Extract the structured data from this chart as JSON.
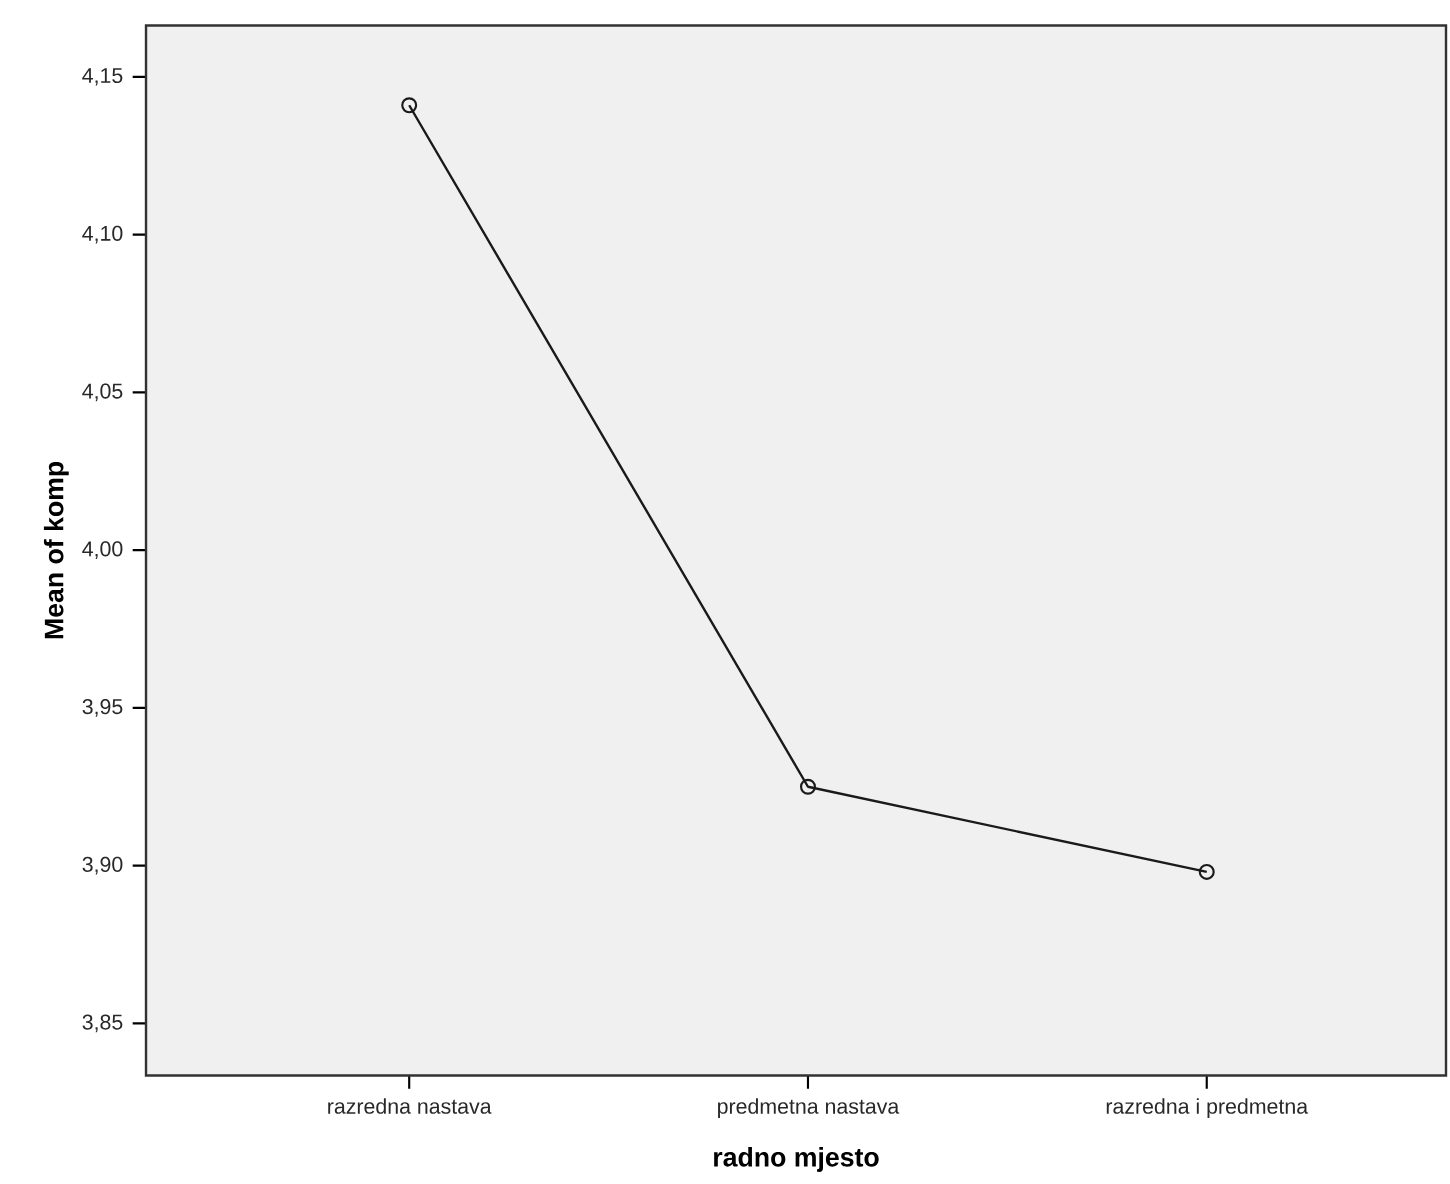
{
  "chart_data": {
    "type": "line",
    "xlabel": "radno mjesto",
    "ylabel": "Mean of komp",
    "categories": [
      "razredna nastava",
      "predmetna nastava",
      "razredna  i predmetna"
    ],
    "series": [
      {
        "color": "#1a1a1a",
        "values": [
          4.141,
          3.925,
          3.898
        ]
      }
    ],
    "ylim": [
      3.8335,
      4.1663
    ],
    "yticks": [
      {
        "value": 3.85,
        "label": "3,85"
      },
      {
        "value": 3.9,
        "label": "3,90"
      },
      {
        "value": 3.95,
        "label": "3,95"
      },
      {
        "value": 4.0,
        "label": "4,00"
      },
      {
        "value": 4.05,
        "label": "4,05"
      },
      {
        "value": 4.1,
        "label": "4,10"
      },
      {
        "value": 4.15,
        "label": "4,15"
      }
    ],
    "marker": "circle",
    "line_style": "solid"
  }
}
